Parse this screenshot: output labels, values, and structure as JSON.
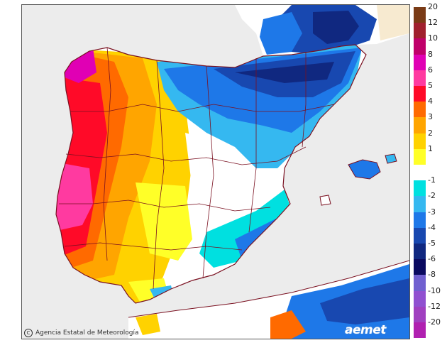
{
  "credit": "Agencia Estatal de Meteorología",
  "logo": "aemet",
  "legend": {
    "levels": [
      {
        "label": "20",
        "color": "#7a3b16"
      },
      {
        "label": "12",
        "color": "#a0202e"
      },
      {
        "label": "10",
        "color": "#c0006a"
      },
      {
        "label": "8",
        "color": "#e000b4"
      },
      {
        "label": "6",
        "color": "#ff3aa0"
      },
      {
        "label": "5",
        "color": "#ff0a28"
      },
      {
        "label": "4",
        "color": "#ff6a00"
      },
      {
        "label": "3",
        "color": "#ffa500"
      },
      {
        "label": "2",
        "color": "#ffd200"
      },
      {
        "label": "1",
        "color": "#ffff28"
      },
      {
        "label": "",
        "color": "#ffffff"
      },
      {
        "label": "-1",
        "color": "#00e0e0"
      },
      {
        "label": "-2",
        "color": "#35b8f0"
      },
      {
        "label": "-3",
        "color": "#1e78e8"
      },
      {
        "label": "-4",
        "color": "#1848b0"
      },
      {
        "label": "-5",
        "color": "#102880"
      },
      {
        "label": "-6",
        "color": "#0a0a60"
      },
      {
        "label": "-8",
        "color": "#7060d0"
      },
      {
        "label": "-10",
        "color": "#9050d0"
      },
      {
        "label": "-12",
        "color": "#a040c0"
      },
      {
        "label": "-20",
        "color": "#b020b0"
      }
    ]
  }
}
